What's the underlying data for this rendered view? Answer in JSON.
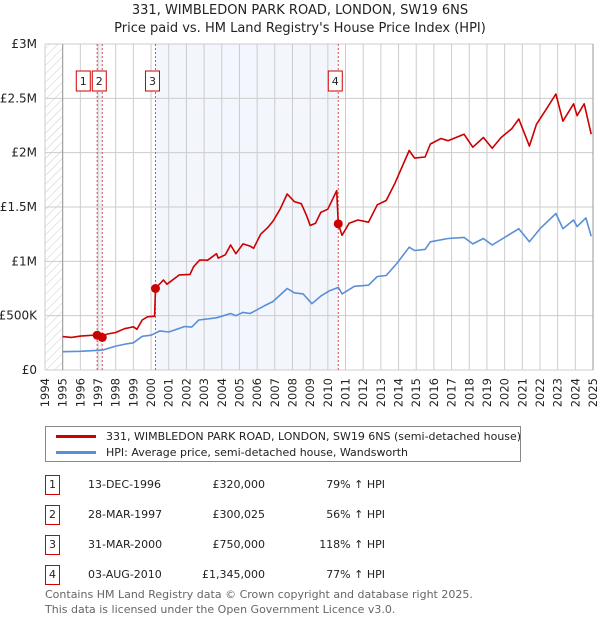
{
  "chart_data": {
    "type": "line",
    "title": "331, WIMBLEDON PARK ROAD, LONDON, SW19 6NS",
    "subtitle": "Price paid vs. HM Land Registry's House Price Index (HPI)",
    "xlim": [
      1994,
      2025
    ],
    "ylim": [
      0,
      3000000
    ],
    "x_ticks": [
      "1994",
      "1995",
      "1996",
      "1997",
      "1998",
      "1999",
      "2000",
      "2001",
      "2002",
      "2003",
      "2004",
      "2005",
      "2006",
      "2007",
      "2008",
      "2009",
      "2010",
      "2011",
      "2012",
      "2013",
      "2014",
      "2015",
      "2016",
      "2017",
      "2018",
      "2019",
      "2020",
      "2021",
      "2022",
      "2023",
      "2024",
      "2025"
    ],
    "y_ticks": [
      {
        "v": 0,
        "label": "£0"
      },
      {
        "v": 500000,
        "label": "£500K"
      },
      {
        "v": 1000000,
        "label": "£1M"
      },
      {
        "v": 1500000,
        "label": "£1.5M"
      },
      {
        "v": 2000000,
        "label": "£2M"
      },
      {
        "v": 2500000,
        "label": "£2.5M"
      },
      {
        "v": 3000000,
        "label": "£3M"
      }
    ],
    "grid": true,
    "series": [
      {
        "name": "331, WIMBLEDON PARK ROAD, LONDON, SW19 6NS (semi-detached house)",
        "color": "#cc0000",
        "points": [
          [
            1995,
            307000
          ],
          [
            1995.5,
            300000
          ],
          [
            1996,
            312000
          ],
          [
            1996.9,
            322000
          ],
          [
            1997.24,
            300025
          ],
          [
            1997.5,
            330000
          ],
          [
            1998,
            345000
          ],
          [
            1998.5,
            380000
          ],
          [
            1999,
            398000
          ],
          [
            1999.2,
            375000
          ],
          [
            1999.5,
            460000
          ],
          [
            1999.8,
            490000
          ],
          [
            2000.2,
            495000
          ],
          [
            2000.25,
            750000
          ],
          [
            2000.7,
            828000
          ],
          [
            2000.9,
            790000
          ],
          [
            2001.6,
            875000
          ],
          [
            2002.2,
            880000
          ],
          [
            2002.4,
            950000
          ],
          [
            2002.75,
            1012000
          ],
          [
            2003.2,
            1010000
          ],
          [
            2003.7,
            1070000
          ],
          [
            2003.8,
            1030000
          ],
          [
            2004.2,
            1060000
          ],
          [
            2004.5,
            1150000
          ],
          [
            2004.8,
            1070000
          ],
          [
            2005.2,
            1160000
          ],
          [
            2005.6,
            1140000
          ],
          [
            2005.8,
            1120000
          ],
          [
            2006.2,
            1250000
          ],
          [
            2006.6,
            1310000
          ],
          [
            2006.9,
            1370000
          ],
          [
            2007.3,
            1480000
          ],
          [
            2007.7,
            1620000
          ],
          [
            2008.1,
            1550000
          ],
          [
            2008.5,
            1530000
          ],
          [
            2008.8,
            1420000
          ],
          [
            2009.0,
            1330000
          ],
          [
            2009.3,
            1350000
          ],
          [
            2009.6,
            1450000
          ],
          [
            2010.0,
            1480000
          ],
          [
            2010.5,
            1650000
          ],
          [
            2010.59,
            1345000
          ],
          [
            2010.8,
            1240000
          ],
          [
            2011.2,
            1350000
          ],
          [
            2011.7,
            1380000
          ],
          [
            2012.3,
            1360000
          ],
          [
            2012.8,
            1520000
          ],
          [
            2013.3,
            1560000
          ],
          [
            2013.8,
            1720000
          ],
          [
            2014.6,
            2020000
          ],
          [
            2014.9,
            1950000
          ],
          [
            2015.5,
            1960000
          ],
          [
            2015.8,
            2080000
          ],
          [
            2016.4,
            2130000
          ],
          [
            2016.8,
            2110000
          ],
          [
            2017.7,
            2170000
          ],
          [
            2018.2,
            2050000
          ],
          [
            2018.8,
            2140000
          ],
          [
            2019.3,
            2040000
          ],
          [
            2019.8,
            2140000
          ],
          [
            2020.4,
            2220000
          ],
          [
            2020.8,
            2310000
          ],
          [
            2021.4,
            2060000
          ],
          [
            2021.8,
            2260000
          ],
          [
            2022.4,
            2410000
          ],
          [
            2022.9,
            2540000
          ],
          [
            2023.3,
            2290000
          ],
          [
            2023.9,
            2450000
          ],
          [
            2024.1,
            2340000
          ],
          [
            2024.5,
            2450000
          ],
          [
            2024.9,
            2170000
          ]
        ]
      },
      {
        "name": "HPI: Average price, semi-detached house, Wandsworth",
        "color": "#5b8fd6",
        "points": [
          [
            1995,
            168000
          ],
          [
            1996,
            172000
          ],
          [
            1996.9,
            180000
          ],
          [
            1997.3,
            185000
          ],
          [
            1998,
            220000
          ],
          [
            1998.6,
            240000
          ],
          [
            1999,
            250000
          ],
          [
            1999.5,
            310000
          ],
          [
            2000,
            320000
          ],
          [
            2000.5,
            360000
          ],
          [
            2001,
            350000
          ],
          [
            2001.9,
            400000
          ],
          [
            2002.3,
            395000
          ],
          [
            2002.7,
            460000
          ],
          [
            2003.7,
            480000
          ],
          [
            2004.5,
            520000
          ],
          [
            2004.8,
            500000
          ],
          [
            2005.2,
            530000
          ],
          [
            2005.6,
            520000
          ],
          [
            2006.4,
            590000
          ],
          [
            2006.9,
            630000
          ],
          [
            2007.7,
            750000
          ],
          [
            2008.1,
            710000
          ],
          [
            2008.6,
            700000
          ],
          [
            2009.1,
            610000
          ],
          [
            2009.6,
            680000
          ],
          [
            2010.1,
            730000
          ],
          [
            2010.6,
            760000
          ],
          [
            2010.8,
            700000
          ],
          [
            2011.5,
            770000
          ],
          [
            2012.3,
            780000
          ],
          [
            2012.8,
            860000
          ],
          [
            2013.3,
            870000
          ],
          [
            2013.9,
            980000
          ],
          [
            2014.6,
            1130000
          ],
          [
            2014.9,
            1100000
          ],
          [
            2015.5,
            1110000
          ],
          [
            2015.8,
            1180000
          ],
          [
            2016.8,
            1210000
          ],
          [
            2017.7,
            1220000
          ],
          [
            2018.2,
            1160000
          ],
          [
            2018.8,
            1210000
          ],
          [
            2019.3,
            1150000
          ],
          [
            2020.2,
            1240000
          ],
          [
            2020.8,
            1300000
          ],
          [
            2021.4,
            1180000
          ],
          [
            2022.0,
            1300000
          ],
          [
            2022.9,
            1440000
          ],
          [
            2023.3,
            1300000
          ],
          [
            2023.9,
            1380000
          ],
          [
            2024.1,
            1320000
          ],
          [
            2024.6,
            1400000
          ],
          [
            2024.9,
            1230000
          ]
        ]
      }
    ],
    "sales": [
      {
        "n": "1",
        "x": 1996.95,
        "value": 320000,
        "date": "13-DEC-1996",
        "price": "£320,000",
        "hpi": "79% ↑ HPI"
      },
      {
        "n": "2",
        "x": 1997.24,
        "value": 300025,
        "date": "28-MAR-1997",
        "price": "£300,025",
        "hpi": "56% ↑ HPI"
      },
      {
        "n": "3",
        "x": 2000.25,
        "value": 750000,
        "date": "31-MAR-2000",
        "price": "£750,000",
        "hpi": "118% ↑ HPI"
      },
      {
        "n": "4",
        "x": 2010.59,
        "value": 1345000,
        "date": "03-AUG-2010",
        "price": "£1,345,000",
        "hpi": "77% ↑ HPI"
      }
    ],
    "legend_placement": "below"
  },
  "footer": {
    "line1": "Contains HM Land Registry data © Crown copyright and database right 2025.",
    "line2": "This data is licensed under the Open Government Licence v3.0."
  }
}
